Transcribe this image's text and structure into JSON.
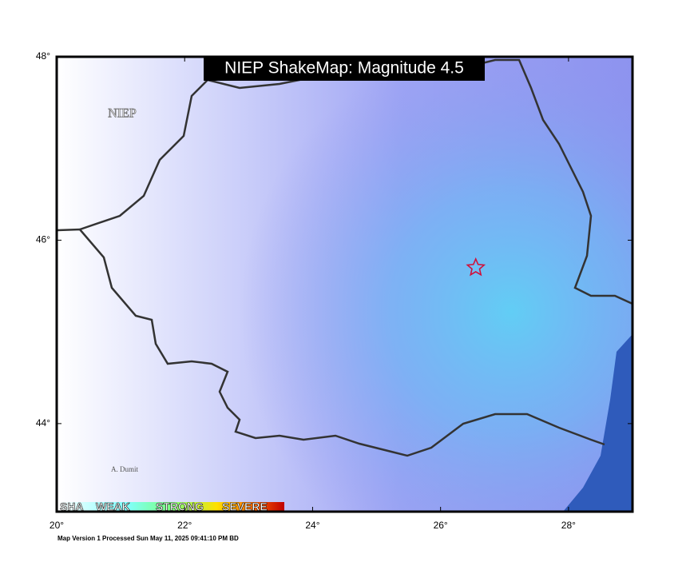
{
  "map": {
    "title": "NIEP ShakeMap: Magnitude 4.5",
    "watermark": "NIEP",
    "credit": "A. Dumit",
    "footer": "Map Version 1 Processed Sun May 11, 2025 09:41:10 PM BD",
    "legend": [
      "SHA",
      "WEAK",
      "STRONG",
      "SEVERE"
    ],
    "xlim": [
      20,
      29
    ],
    "ylim": [
      43.04,
      48
    ],
    "xticks": [
      {
        "value": 20,
        "label": "20°"
      },
      {
        "value": 22,
        "label": "22°"
      },
      {
        "value": 24,
        "label": "24°"
      },
      {
        "value": 26,
        "label": "26°"
      },
      {
        "value": 28,
        "label": "28°"
      }
    ],
    "yticks": [
      {
        "value": 44,
        "label": "44°"
      },
      {
        "value": 46,
        "label": "46°"
      },
      {
        "value": 48,
        "label": "48°"
      }
    ],
    "epicenter": {
      "lon": 26.55,
      "lat": 45.7
    }
  }
}
